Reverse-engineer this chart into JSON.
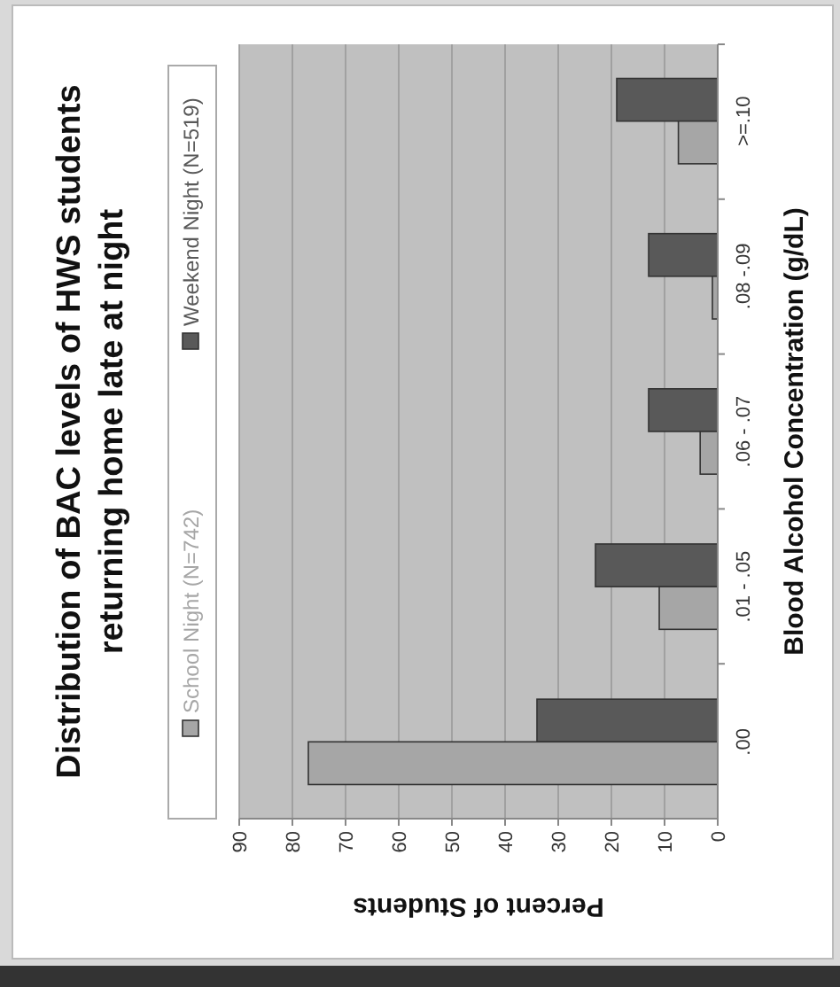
{
  "chart_data": {
    "type": "bar",
    "orientation": "horizontal",
    "title": "Distribution of BAC levels of HWS students returning home late at night",
    "xlabel": "Percent of Students",
    "ylabel": "Blood Alcohol Concentration (g/dL)",
    "categories": [
      ">=.10",
      ".08 -.09",
      ".06 - .07",
      ".01 - .05",
      ".00"
    ],
    "series": [
      {
        "name": "Weekend Night (N=519)",
        "color": "#595959",
        "values": [
          19,
          13,
          13,
          23,
          34
        ]
      },
      {
        "name": "School Night (N=742)",
        "color": "#a6a6a6",
        "values": [
          7.4,
          1,
          3.3,
          11,
          77
        ]
      }
    ],
    "xlim": [
      90,
      0
    ],
    "xticks": [
      90,
      80,
      70,
      60,
      50,
      40,
      30,
      20,
      10,
      0
    ],
    "grid": "x",
    "legend": "left"
  }
}
